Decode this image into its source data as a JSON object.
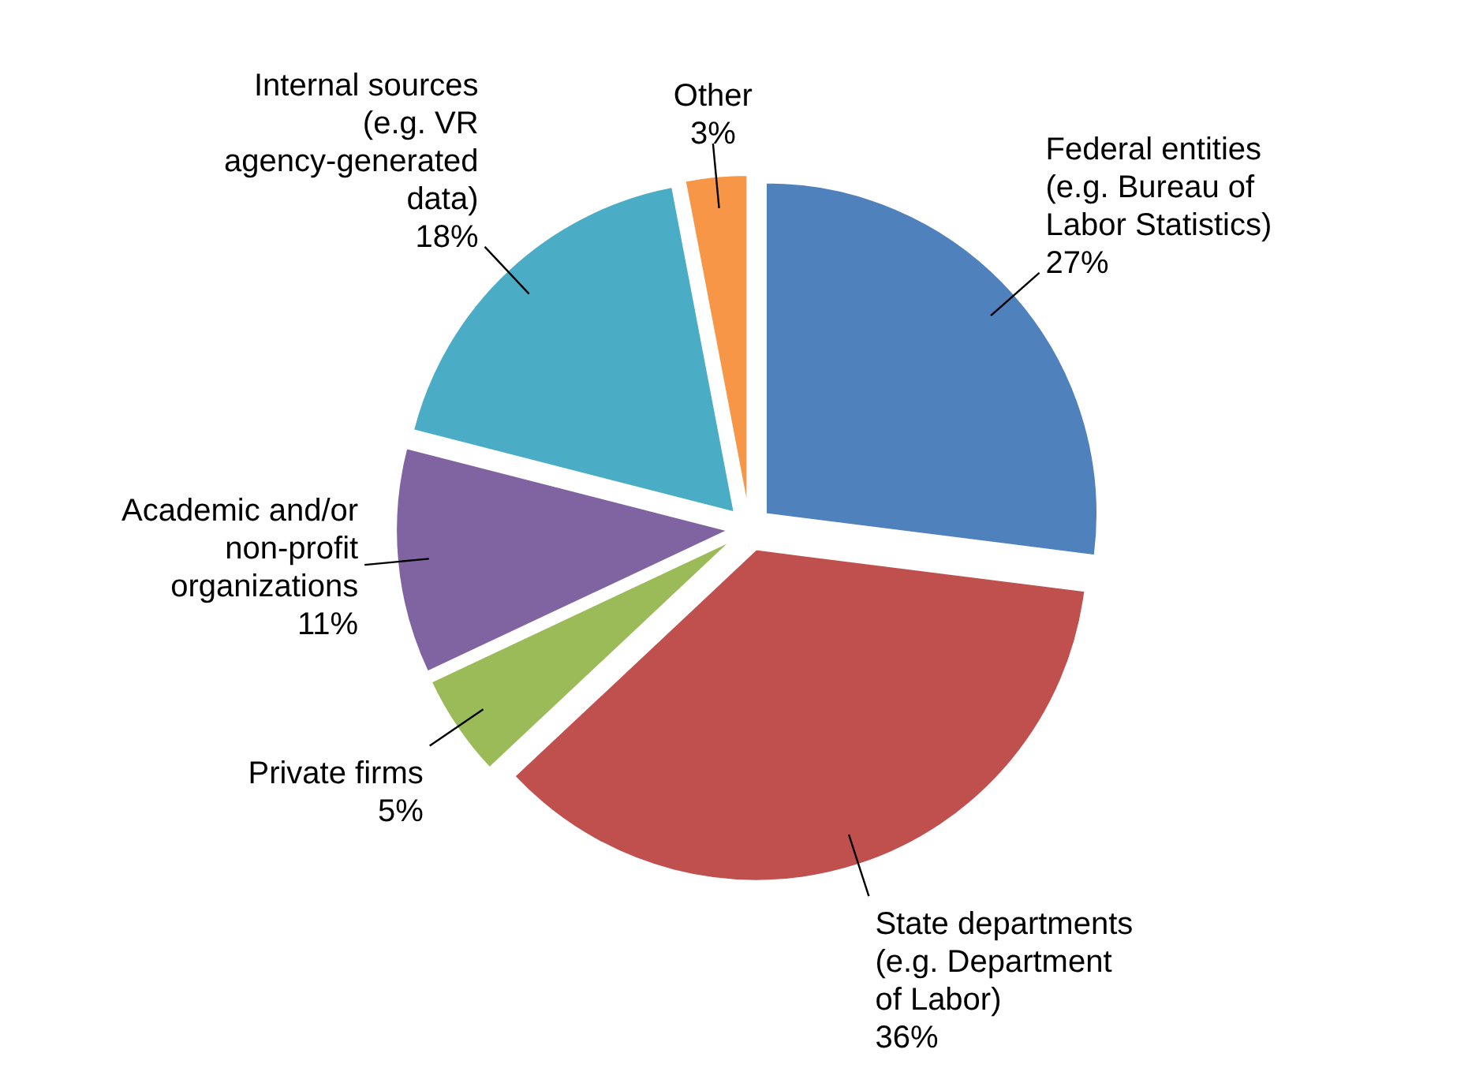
{
  "chart_data": {
    "type": "pie",
    "categories": [
      "Federal entities (e.g. Bureau of Labor Statistics)",
      "State departments (e.g. Department of Labor)",
      "Private firms",
      "Academic and/or non-profit organizations",
      "Internal sources (e.g. VR agency-generated data)",
      "Other"
    ],
    "values": [
      27,
      36,
      5,
      11,
      18,
      3
    ],
    "value_labels": [
      "27%",
      "36%",
      "5%",
      "11%",
      "18%",
      "3%"
    ],
    "colors": [
      "#4f81bd",
      "#c0504d",
      "#9bbb59",
      "#8064a2",
      "#4bacc6",
      "#f79646"
    ]
  }
}
